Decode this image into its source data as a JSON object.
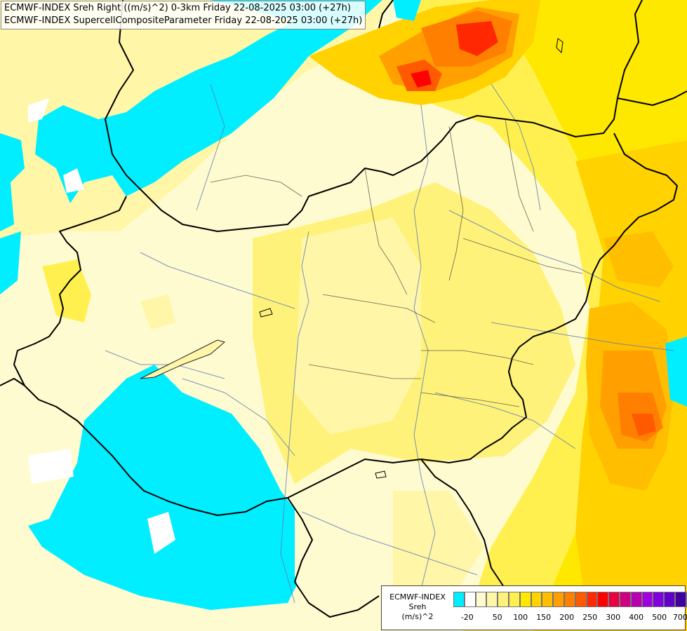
{
  "title": {
    "line1": "ECMWF-INDEX Sreh Right ((m/s)^2) 0-3km Friday 22-08-2025 03:00 (+27h)",
    "line2": "ECMWF-INDEX SupercellCompositeParameter Friday 22-08-2025 03:00 (+27h)"
  },
  "legend": {
    "line1": "ECMWF-INDEX",
    "line2": "Sreh",
    "line3": "(m/s)^2",
    "colors": [
      "#00eeff",
      "#ffffff",
      "#fffbd0",
      "#fff6a8",
      "#fff27a",
      "#fff050",
      "#ffe800",
      "#ffd200",
      "#ffbe00",
      "#ffa000",
      "#ff8000",
      "#ff5a00",
      "#ff2800",
      "#ff0000",
      "#e80040",
      "#cc0080",
      "#b800b0",
      "#a000e0",
      "#8000e0",
      "#6000c8",
      "#4000a0",
      "#200080"
    ],
    "ticks": [
      "-20",
      "50",
      "100",
      "150",
      "200",
      "250",
      "300",
      "400",
      "500",
      "700"
    ]
  }
}
